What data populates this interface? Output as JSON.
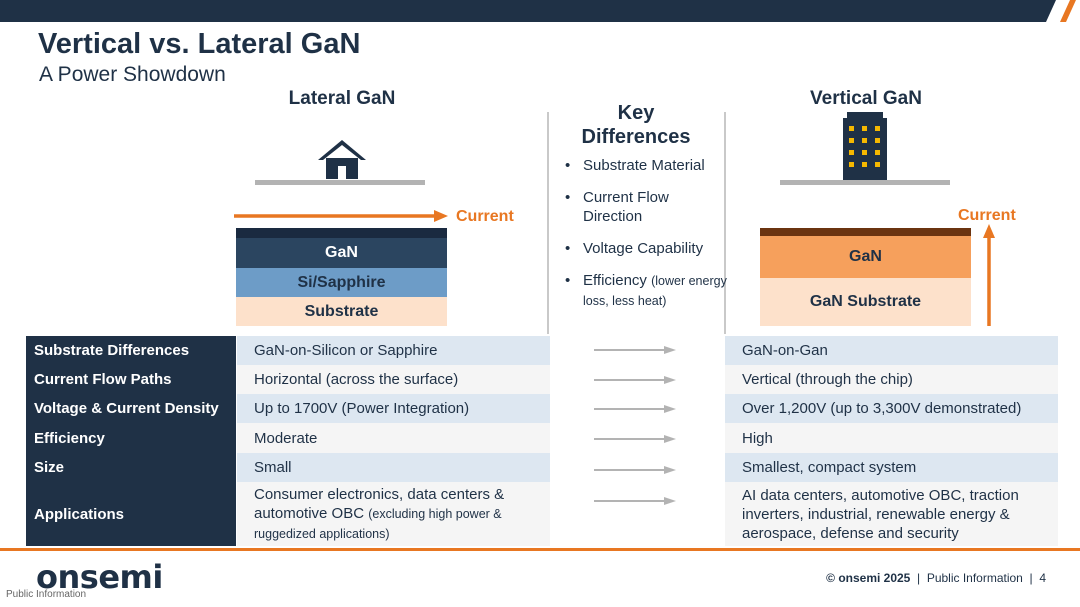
{
  "title": "Vertical vs. Lateral GaN",
  "subtitle": "A Power Showdown",
  "lateral": {
    "heading": "Lateral GaN",
    "current_label": "Current",
    "layers": [
      "GaN",
      "Si/Sapphire",
      "Substrate"
    ]
  },
  "vertical": {
    "heading": "Vertical GaN",
    "current_label": "Current",
    "layers": [
      "GaN",
      "GaN Substrate"
    ]
  },
  "key_differences": {
    "title_line1": "Key",
    "title_line2": "Differences",
    "items": [
      {
        "text": "Substrate Material",
        "note": ""
      },
      {
        "text": "Current Flow Direction",
        "note": ""
      },
      {
        "text": "Voltage Capability",
        "note": ""
      },
      {
        "text": "Efficiency",
        "note": "(lower energy loss, less heat)"
      }
    ]
  },
  "table": {
    "rows": [
      {
        "label": "Substrate Differences",
        "lateral": "GaN-on-Silicon or Sapphire",
        "vertical": "GaN-on-Gan"
      },
      {
        "label": "Current Flow Paths",
        "lateral": "Horizontal (across the surface)",
        "vertical": "Vertical (through the chip)"
      },
      {
        "label": "Voltage & Current Density",
        "lateral": "Up to 1700V (Power Integration)",
        "vertical": "Over 1,200V (up to 3,300V demonstrated)"
      },
      {
        "label": "Efficiency",
        "lateral": "Moderate",
        "vertical": "High"
      },
      {
        "label": "Size",
        "lateral": "Small",
        "vertical": "Smallest, compact system"
      },
      {
        "label": "Applications",
        "lateral": "Consumer electronics, data centers & automotive OBC",
        "lateral_note": "(excluding high power & ruggedized applications)",
        "vertical": "AI data centers, automotive OBC, traction inverters, industrial, renewable energy & aerospace, defense and security"
      }
    ]
  },
  "footer": {
    "logo": "onsemi",
    "logo_sub": "Public Information",
    "copyright": "© onsemi 2025",
    "classification": "Public Information",
    "page": "4"
  },
  "colors": {
    "navy": "#1f3146",
    "orange": "#e87722",
    "light_blue": "#6d9cc7",
    "peach": "#fde1cb",
    "row_shade": "#dde7f1"
  },
  "icons": [
    "house-icon",
    "building-icon",
    "arrow-right-icon",
    "arrow-up-icon"
  ]
}
